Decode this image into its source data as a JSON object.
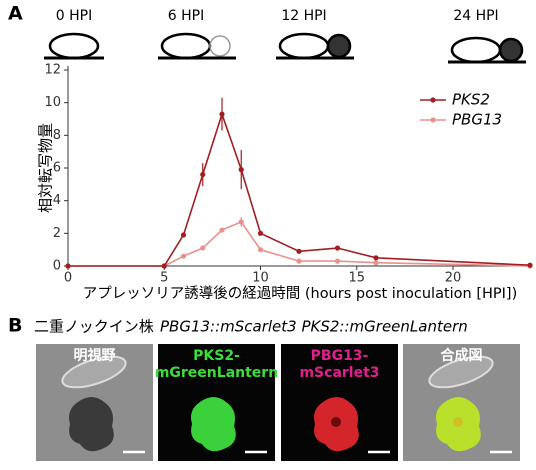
{
  "panel_labels": [
    "A",
    "B"
  ],
  "chart_data": {
    "type": "line",
    "annotations": [
      "0 HPI",
      "6 HPI",
      "12 HPI",
      "24 HPI"
    ],
    "y_label": "相対転写物量",
    "x_label": "アプレッソリア誘導後の経過時間 (hours post inoculation [HPI])",
    "x": [
      0,
      5,
      6,
      7,
      8,
      9,
      10,
      12,
      14,
      16,
      24
    ],
    "series": [
      {
        "name": "PKS2",
        "color": "#a31e22",
        "values": [
          0,
          0,
          1.9,
          5.6,
          9.3,
          5.9,
          2.0,
          0.9,
          1.1,
          0.5,
          0.05
        ],
        "errors": [
          null,
          null,
          null,
          0.7,
          1.0,
          1.2,
          null,
          null,
          null,
          null,
          null
        ]
      },
      {
        "name": "PBG13",
        "color": "#e8928e",
        "values": [
          0,
          0,
          0.6,
          1.1,
          2.2,
          2.7,
          1.0,
          0.3,
          0.3,
          0.2,
          0
        ],
        "errors": [
          null,
          null,
          null,
          null,
          null,
          0.3,
          null,
          null,
          null,
          null,
          null
        ]
      }
    ],
    "xlim": [
      0,
      24
    ],
    "ylim": [
      0,
      12
    ],
    "xticks": [
      0,
      5,
      10,
      15,
      20
    ],
    "yticks": [
      0,
      2,
      4,
      6,
      8,
      10,
      12
    ],
    "legend": "upper right"
  },
  "panel_b": {
    "title_plain": "二重ノックイン株",
    "title_italic": "PBG13::mScarlet3 PKS2::mGreenLantern",
    "images": [
      {
        "labels": [
          "明視野"
        ],
        "color": "#ffffff"
      },
      {
        "labels": [
          "PKS2-",
          "mGreenLantern"
        ],
        "color": "#3ddc3d"
      },
      {
        "labels": [
          "PBG13-",
          "mScarlet3"
        ],
        "color": "#e0208c"
      },
      {
        "labels": [
          "合成図"
        ],
        "color": "#ffffff"
      }
    ]
  }
}
